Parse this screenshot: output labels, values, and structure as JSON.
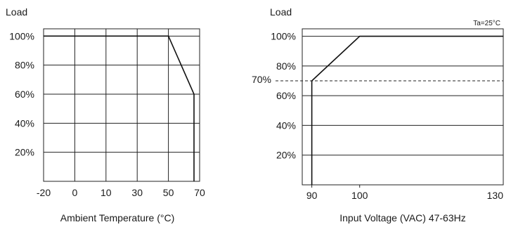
{
  "chart_data": [
    {
      "type": "line",
      "title": "",
      "ylabel": "Load",
      "xlabel": "Ambient Temperature (°C)",
      "x_tick_labels": [
        "-20",
        "0",
        "10",
        "30",
        "50",
        "70"
      ],
      "y_tick_labels": [
        "20%",
        "40%",
        "60%",
        "80%",
        "100%"
      ],
      "y_ticks": [
        20,
        40,
        60,
        80,
        100
      ],
      "ylim": [
        0,
        105
      ],
      "grid": true,
      "series": [
        {
          "x_index": [
            0,
            4,
            5,
            5
          ],
          "y": [
            100,
            100,
            60,
            0
          ]
        }
      ]
    },
    {
      "type": "line",
      "title": "",
      "ylabel": "Load",
      "xlabel": "Input Voltage (VAC) 47-63Hz",
      "annotation": "Ta=25°C",
      "x_ticks": [
        90,
        100,
        130
      ],
      "x_tick_labels": [
        "90",
        "100",
        "130"
      ],
      "xlim": [
        88,
        130
      ],
      "y_tick_labels": [
        "20%",
        "40%",
        "60%",
        "80%",
        "100%"
      ],
      "y_ticks": [
        20,
        40,
        60,
        80,
        100
      ],
      "ylim": [
        0,
        105
      ],
      "reference_line": {
        "y": 70,
        "label": "70%",
        "style": "dashed"
      },
      "grid": "horizontal",
      "series": [
        {
          "x": [
            90,
            90,
            100,
            130
          ],
          "y": [
            0,
            70,
            100,
            100
          ]
        }
      ]
    }
  ]
}
